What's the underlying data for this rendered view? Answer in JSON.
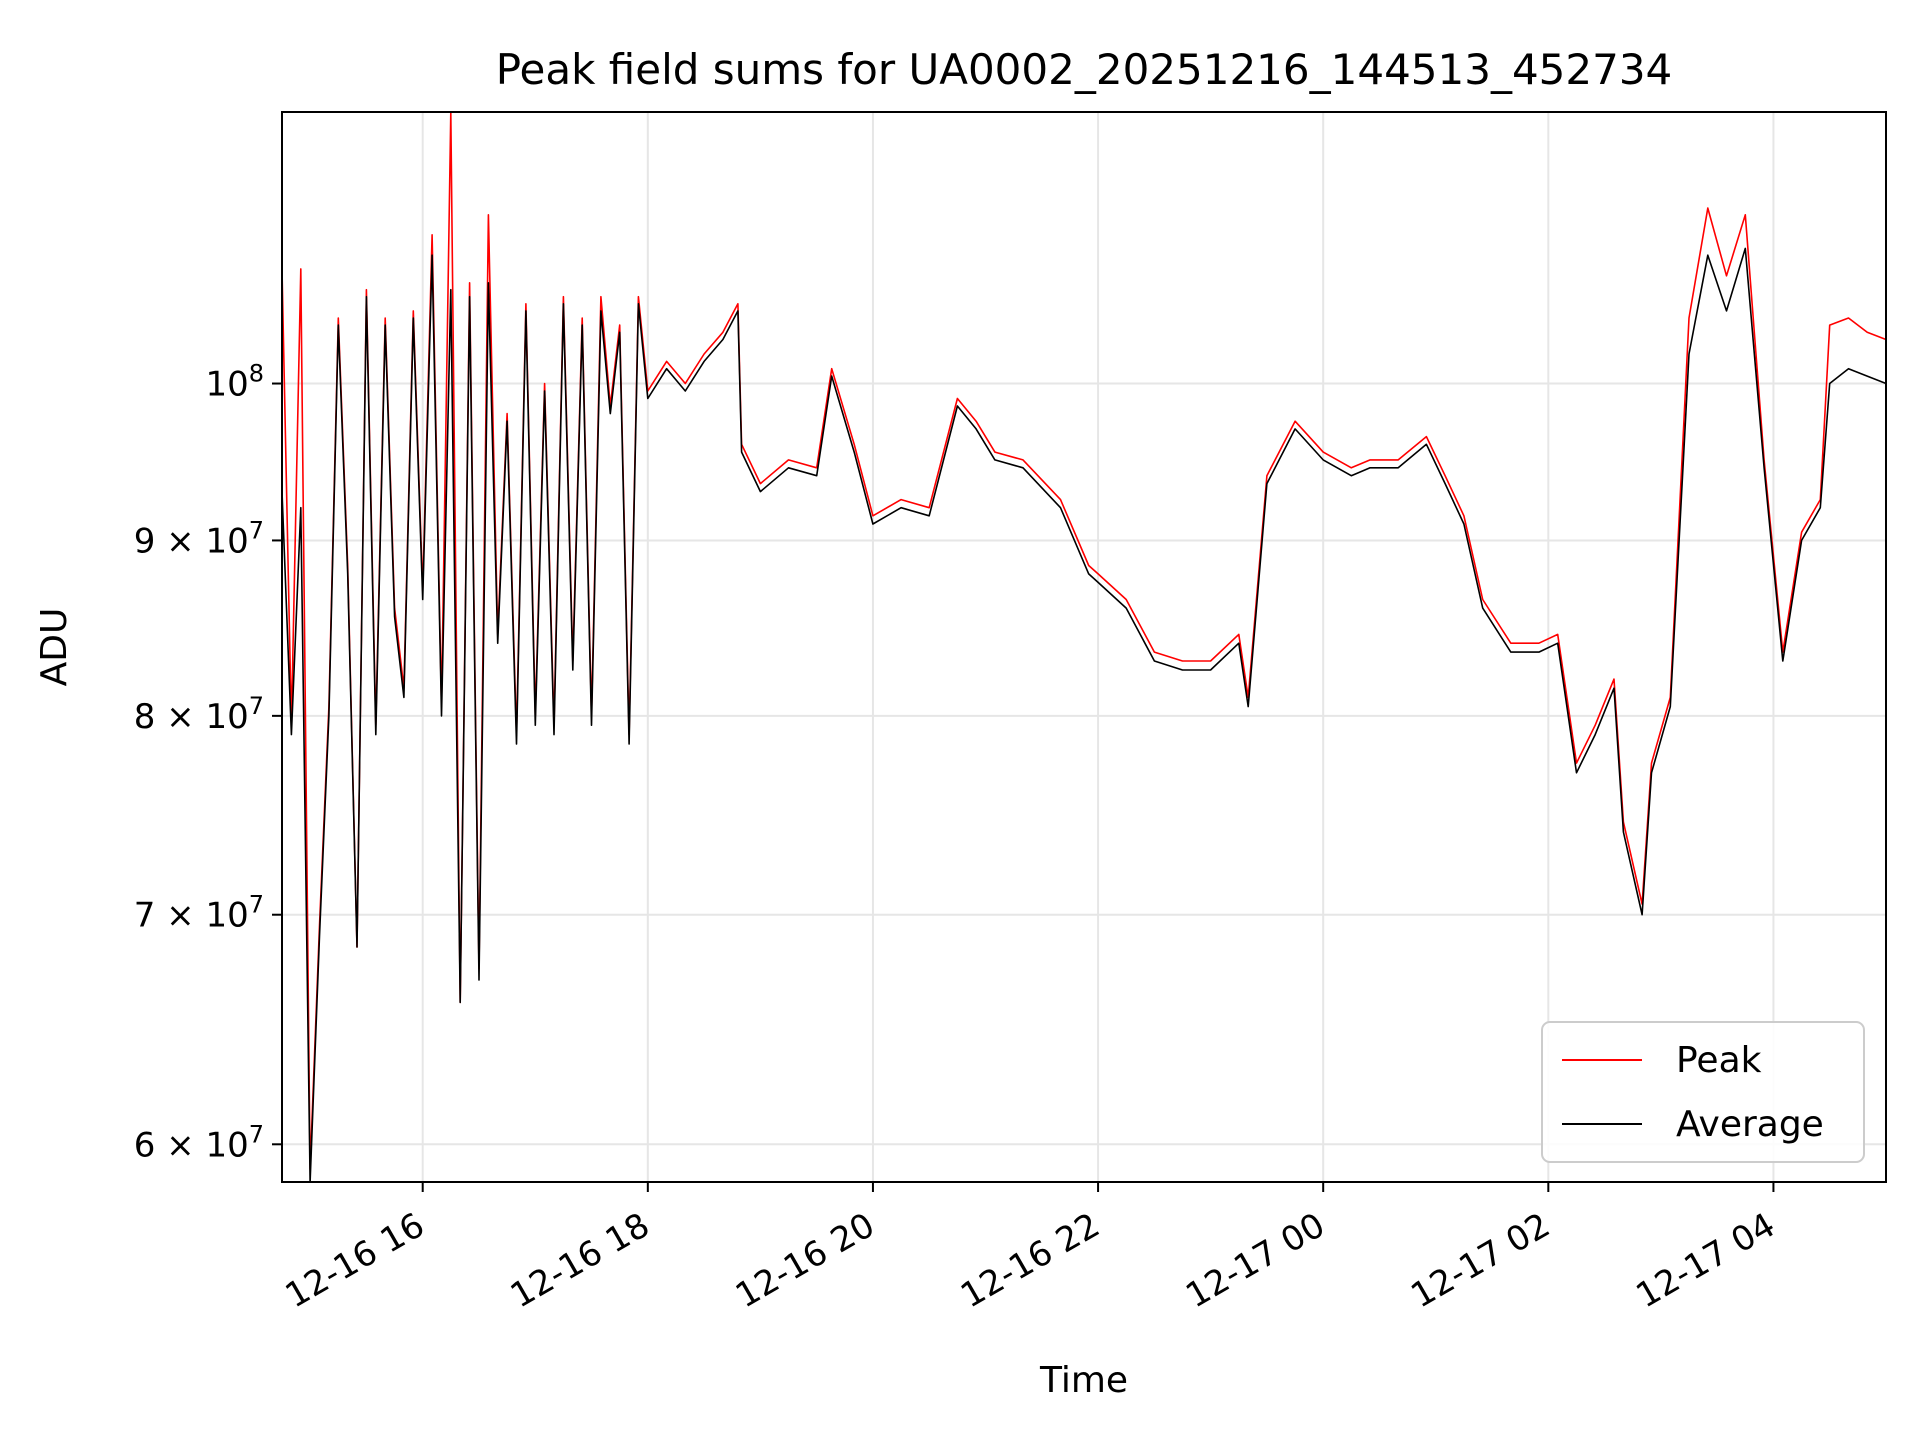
{
  "chart_data": {
    "type": "line",
    "title": "Peak field sums for UA0002_20251216_144513_452734",
    "xlabel": "Time",
    "ylabel": "ADU",
    "yscale": "log",
    "grid": true,
    "legend_position": "lower-right",
    "xlim": [
      "2025-12-16 14:45",
      "2025-12-17 05:00"
    ],
    "ylim": [
      58500000,
      120000000
    ],
    "x_ticks": [
      {
        "t": "2025-12-16 16:00",
        "label": "12-16 16"
      },
      {
        "t": "2025-12-16 18:00",
        "label": "12-16 18"
      },
      {
        "t": "2025-12-16 20:00",
        "label": "12-16 20"
      },
      {
        "t": "2025-12-16 22:00",
        "label": "12-16 22"
      },
      {
        "t": "2025-12-17 00:00",
        "label": "12-17 00"
      },
      {
        "t": "2025-12-17 02:00",
        "label": "12-17 02"
      },
      {
        "t": "2025-12-17 04:00",
        "label": "12-17 04"
      }
    ],
    "y_ticks": [
      {
        "v": 60000000,
        "base": "6",
        "exp": "7"
      },
      {
        "v": 70000000,
        "base": "7",
        "exp": "7"
      },
      {
        "v": 80000000,
        "base": "8",
        "exp": "7"
      },
      {
        "v": 90000000,
        "base": "9",
        "exp": "7"
      },
      {
        "v": 100000000,
        "base": "",
        "exp": "8"
      }
    ],
    "series": [
      {
        "name": "Peak",
        "color": "#ff0000",
        "x": [
          "2025-12-16 14:45",
          "2025-12-16 14:50",
          "2025-12-16 14:55",
          "2025-12-16 15:00",
          "2025-12-16 15:05",
          "2025-12-16 15:10",
          "2025-12-16 15:15",
          "2025-12-16 15:20",
          "2025-12-16 15:25",
          "2025-12-16 15:30",
          "2025-12-16 15:35",
          "2025-12-16 15:40",
          "2025-12-16 15:45",
          "2025-12-16 15:50",
          "2025-12-16 15:55",
          "2025-12-16 16:00",
          "2025-12-16 16:05",
          "2025-12-16 16:10",
          "2025-12-16 16:15",
          "2025-12-16 16:20",
          "2025-12-16 16:25",
          "2025-12-16 16:30",
          "2025-12-16 16:35",
          "2025-12-16 16:40",
          "2025-12-16 16:45",
          "2025-12-16 16:50",
          "2025-12-16 16:55",
          "2025-12-16 17:00",
          "2025-12-16 17:05",
          "2025-12-16 17:10",
          "2025-12-16 17:15",
          "2025-12-16 17:20",
          "2025-12-16 17:25",
          "2025-12-16 17:30",
          "2025-12-16 17:35",
          "2025-12-16 17:40",
          "2025-12-16 17:45",
          "2025-12-16 17:50",
          "2025-12-16 17:55",
          "2025-12-16 18:00",
          "2025-12-16 18:10",
          "2025-12-16 18:20",
          "2025-12-16 18:30",
          "2025-12-16 18:40",
          "2025-12-16 18:48",
          "2025-12-16 18:50",
          "2025-12-16 19:00",
          "2025-12-16 19:15",
          "2025-12-16 19:30",
          "2025-12-16 19:38",
          "2025-12-16 19:50",
          "2025-12-16 20:00",
          "2025-12-16 20:15",
          "2025-12-16 20:30",
          "2025-12-16 20:45",
          "2025-12-16 20:55",
          "2025-12-16 21:05",
          "2025-12-16 21:20",
          "2025-12-16 21:40",
          "2025-12-16 21:55",
          "2025-12-16 22:00",
          "2025-12-16 22:15",
          "2025-12-16 22:30",
          "2025-12-16 22:45",
          "2025-12-16 23:00",
          "2025-12-16 23:15",
          "2025-12-16 23:20",
          "2025-12-16 23:30",
          "2025-12-16 23:45",
          "2025-12-17 00:00",
          "2025-12-17 00:15",
          "2025-12-17 00:25",
          "2025-12-17 00:40",
          "2025-12-17 00:55",
          "2025-12-17 01:05",
          "2025-12-17 01:15",
          "2025-12-17 01:25",
          "2025-12-17 01:40",
          "2025-12-17 01:55",
          "2025-12-17 02:05",
          "2025-12-17 02:15",
          "2025-12-17 02:25",
          "2025-12-17 02:35",
          "2025-12-17 02:40",
          "2025-12-17 02:50",
          "2025-12-17 02:55",
          "2025-12-17 03:05",
          "2025-12-17 03:15",
          "2025-12-17 03:25",
          "2025-12-17 03:35",
          "2025-12-17 03:45",
          "2025-12-17 03:55",
          "2025-12-17 04:05",
          "2025-12-17 04:15",
          "2025-12-17 04:25",
          "2025-12-17 04:30",
          "2025-12-17 04:40",
          "2025-12-17 04:50",
          "2025-12-17 05:00"
        ],
        "values": [
          108000000,
          79500000,
          108000000,
          59000000,
          69500000,
          80500000,
          104500000,
          88500000,
          68500000,
          106500000,
          79500000,
          104500000,
          86000000,
          81500000,
          105000000,
          87000000,
          110500000,
          80500000,
          120000000,
          66000000,
          107000000,
          67500000,
          112000000,
          84500000,
          98000000,
          79000000,
          105500000,
          80000000,
          100000000,
          79500000,
          106000000,
          83000000,
          104500000,
          80000000,
          106000000,
          98500000,
          104000000,
          79000000,
          106000000,
          99500000,
          101500000,
          100000000,
          102000000,
          103500000,
          105500000,
          96000000,
          93500000,
          95000000,
          94500000,
          101000000,
          96000000,
          91500000,
          92500000,
          92000000,
          99000000,
          97500000,
          95500000,
          95000000,
          92500000,
          88500000,
          88000000,
          86500000,
          83500000,
          83000000,
          83000000,
          84500000,
          81000000,
          94000000,
          97500000,
          95500000,
          94500000,
          95000000,
          95000000,
          96500000,
          94000000,
          91500000,
          86500000,
          84000000,
          84000000,
          84500000,
          77500000,
          79500000,
          82000000,
          74500000,
          70500000,
          77500000,
          81000000,
          104500000,
          112500000,
          107500000,
          112000000,
          95000000,
          83500000,
          90500000,
          92500000,
          104000000,
          104500000,
          103500000,
          103000000
        ]
      },
      {
        "name": "Average",
        "color": "#000000",
        "x": [
          "2025-12-16 14:45",
          "2025-12-16 14:50",
          "2025-12-16 14:55",
          "2025-12-16 15:00",
          "2025-12-16 15:05",
          "2025-12-16 15:10",
          "2025-12-16 15:15",
          "2025-12-16 15:20",
          "2025-12-16 15:25",
          "2025-12-16 15:30",
          "2025-12-16 15:35",
          "2025-12-16 15:40",
          "2025-12-16 15:45",
          "2025-12-16 15:50",
          "2025-12-16 15:55",
          "2025-12-16 16:00",
          "2025-12-16 16:05",
          "2025-12-16 16:10",
          "2025-12-16 16:15",
          "2025-12-16 16:20",
          "2025-12-16 16:25",
          "2025-12-16 16:30",
          "2025-12-16 16:35",
          "2025-12-16 16:40",
          "2025-12-16 16:45",
          "2025-12-16 16:50",
          "2025-12-16 16:55",
          "2025-12-16 17:00",
          "2025-12-16 17:05",
          "2025-12-16 17:10",
          "2025-12-16 17:15",
          "2025-12-16 17:20",
          "2025-12-16 17:25",
          "2025-12-16 17:30",
          "2025-12-16 17:35",
          "2025-12-16 17:40",
          "2025-12-16 17:45",
          "2025-12-16 17:50",
          "2025-12-16 17:55",
          "2025-12-16 18:00",
          "2025-12-16 18:10",
          "2025-12-16 18:20",
          "2025-12-16 18:30",
          "2025-12-16 18:40",
          "2025-12-16 18:48",
          "2025-12-16 18:50",
          "2025-12-16 19:00",
          "2025-12-16 19:15",
          "2025-12-16 19:30",
          "2025-12-16 19:38",
          "2025-12-16 19:50",
          "2025-12-16 20:00",
          "2025-12-16 20:15",
          "2025-12-16 20:30",
          "2025-12-16 20:45",
          "2025-12-16 20:55",
          "2025-12-16 21:05",
          "2025-12-16 21:20",
          "2025-12-16 21:40",
          "2025-12-16 21:55",
          "2025-12-16 22:00",
          "2025-12-16 22:15",
          "2025-12-16 22:30",
          "2025-12-16 22:45",
          "2025-12-16 23:00",
          "2025-12-16 23:15",
          "2025-12-16 23:20",
          "2025-12-16 23:30",
          "2025-12-16 23:45",
          "2025-12-17 00:00",
          "2025-12-17 00:15",
          "2025-12-17 00:25",
          "2025-12-17 00:40",
          "2025-12-17 00:55",
          "2025-12-17 01:05",
          "2025-12-17 01:15",
          "2025-12-17 01:25",
          "2025-12-17 01:40",
          "2025-12-17 01:55",
          "2025-12-17 02:05",
          "2025-12-17 02:15",
          "2025-12-17 02:25",
          "2025-12-17 02:35",
          "2025-12-17 02:40",
          "2025-12-17 02:50",
          "2025-12-17 02:55",
          "2025-12-17 03:05",
          "2025-12-17 03:15",
          "2025-12-17 03:25",
          "2025-12-17 03:35",
          "2025-12-17 03:45",
          "2025-12-17 03:55",
          "2025-12-17 04:05",
          "2025-12-17 04:15",
          "2025-12-17 04:25",
          "2025-12-17 04:30",
          "2025-12-17 04:40",
          "2025-12-17 04:50",
          "2025-12-17 05:00"
        ],
        "values": [
          93000000,
          79000000,
          92000000,
          58500000,
          69000000,
          80000000,
          104000000,
          88000000,
          68500000,
          106000000,
          79000000,
          104000000,
          85500000,
          81000000,
          104500000,
          86500000,
          109000000,
          80000000,
          106500000,
          66000000,
          106000000,
          67000000,
          107000000,
          84000000,
          97500000,
          78500000,
          105000000,
          79500000,
          99500000,
          79000000,
          105500000,
          82500000,
          104000000,
          79500000,
          105000000,
          98000000,
          103500000,
          78500000,
          105500000,
          99000000,
          101000000,
          99500000,
          101500000,
          103000000,
          105000000,
          95500000,
          93000000,
          94500000,
          94000000,
          100500000,
          95500000,
          91000000,
          92000000,
          91500000,
          98500000,
          97000000,
          95000000,
          94500000,
          92000000,
          88000000,
          87500000,
          86000000,
          83000000,
          82500000,
          82500000,
          84000000,
          80500000,
          93500000,
          97000000,
          95000000,
          94000000,
          94500000,
          94500000,
          96000000,
          93500000,
          91000000,
          86000000,
          83500000,
          83500000,
          84000000,
          77000000,
          79000000,
          81500000,
          74000000,
          70000000,
          77000000,
          80500000,
          102000000,
          109000000,
          105000000,
          109500000,
          94500000,
          83000000,
          90000000,
          92000000,
          100000000,
          101000000,
          100500000,
          100000000
        ]
      }
    ]
  }
}
